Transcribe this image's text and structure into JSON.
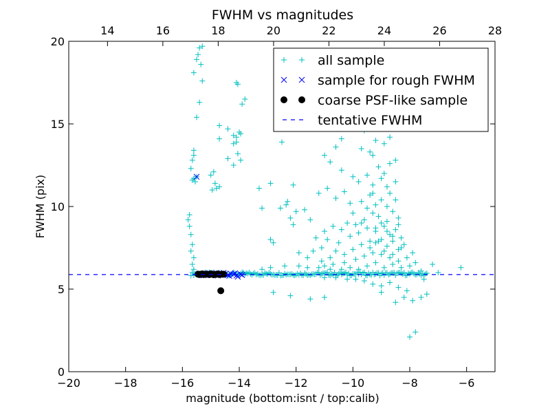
{
  "chart_data": {
    "type": "scatter",
    "title": "FWHM vs magnitudes",
    "xlabel": "magnitude (bottom:isnt / top:calib)",
    "ylabel": "FWHM (pix)",
    "xlim": [
      -20,
      -5
    ],
    "ylim": [
      0,
      20
    ],
    "x_ticks": [
      -20,
      -18,
      -16,
      -14,
      -12,
      -10,
      -8,
      -6
    ],
    "x_tick_labels": [
      "−20",
      "−18",
      "−16",
      "−14",
      "−12",
      "−10",
      "−8",
      "−6"
    ],
    "y_ticks": [
      0,
      5,
      10,
      15,
      20
    ],
    "y_tick_labels": [
      "0",
      "5",
      "10",
      "15",
      "20"
    ],
    "top_axis": {
      "xlim": [
        12.6,
        28.0
      ],
      "ticks": [
        14,
        16,
        18,
        20,
        22,
        24,
        26,
        28
      ],
      "tick_labels": [
        "14",
        "16",
        "18",
        "20",
        "22",
        "24",
        "26",
        "28"
      ]
    },
    "legend": {
      "placement": "top-right",
      "entries": [
        {
          "label": "all sample",
          "marker": "plus",
          "color": "#00bfbf"
        },
        {
          "label": "sample for rough FWHM",
          "marker": "x",
          "color": "#0000ff"
        },
        {
          "label": "coarse PSF-like sample",
          "marker": "circle",
          "color": "#000000"
        },
        {
          "label": "tentative FWHM",
          "marker": "dashed-line",
          "color": "#0000ff"
        }
      ]
    },
    "tentative_fwhm": 5.88,
    "series": [
      {
        "name": "all sample",
        "marker": "plus",
        "color": "#00bfbf",
        "points": [
          [
            -15.4,
            19.6
          ],
          [
            -15.3,
            19.7
          ],
          [
            -15.45,
            19.2
          ],
          [
            -15.5,
            18.9
          ],
          [
            -15.6,
            18.1
          ],
          [
            -15.35,
            18.6
          ],
          [
            -15.3,
            17.6
          ],
          [
            -14.1,
            17.5
          ],
          [
            -14.05,
            17.4
          ],
          [
            -13.8,
            16.5
          ],
          [
            -15.4,
            16.3
          ],
          [
            -13.9,
            16.2
          ],
          [
            -15.5,
            15.4
          ],
          [
            -14.7,
            14.9
          ],
          [
            -14.4,
            14.7
          ],
          [
            -14.7,
            14.1
          ],
          [
            -14.2,
            14.3
          ],
          [
            -14.0,
            14.5
          ],
          [
            -14.1,
            14.2
          ],
          [
            -13.95,
            14.4
          ],
          [
            -14.2,
            13.8
          ],
          [
            -14.1,
            13.9
          ],
          [
            -14.4,
            12.9
          ],
          [
            -14.05,
            13.2
          ],
          [
            -13.95,
            12.8
          ],
          [
            -14.2,
            12.5
          ],
          [
            -15.6,
            13.4
          ],
          [
            -15.6,
            13.1
          ],
          [
            -15.65,
            12.8
          ],
          [
            -15.7,
            12.3
          ],
          [
            -15.6,
            11.7
          ],
          [
            -15.55,
            11.5
          ],
          [
            -15.65,
            11.6
          ],
          [
            -15.5,
            11.8
          ],
          [
            -14.9,
            12.1
          ],
          [
            -15.0,
            11.9
          ],
          [
            -14.85,
            11.4
          ],
          [
            -14.95,
            11.0
          ],
          [
            -14.7,
            11.2
          ],
          [
            -14.8,
            11.1
          ],
          [
            -15.75,
            9.5
          ],
          [
            -15.8,
            9.2
          ],
          [
            -15.75,
            8.8
          ],
          [
            -15.7,
            8.3
          ],
          [
            -15.65,
            7.7
          ],
          [
            -15.7,
            7.3
          ],
          [
            -15.6,
            6.9
          ],
          [
            -15.65,
            6.5
          ],
          [
            -15.6,
            6.2
          ],
          [
            -13.3,
            11.1
          ],
          [
            -12.9,
            11.4
          ],
          [
            -12.1,
            11.3
          ],
          [
            -12.3,
            10.3
          ],
          [
            -12.55,
            9.9
          ],
          [
            -13.2,
            9.9
          ],
          [
            -12.35,
            10.1
          ],
          [
            -12.2,
            9.3
          ],
          [
            -12.1,
            8.9
          ],
          [
            -12.0,
            9.7
          ],
          [
            -11.7,
            9.8
          ],
          [
            -11.5,
            9.2
          ],
          [
            -12.9,
            8.0
          ],
          [
            -12.8,
            7.8
          ],
          [
            -11.9,
            7.2
          ],
          [
            -11.6,
            6.9
          ],
          [
            -11.4,
            7.3
          ],
          [
            -11.1,
            7.5
          ],
          [
            -11.0,
            6.4
          ],
          [
            -12.5,
            13.9
          ],
          [
            -11.0,
            13.1
          ],
          [
            -10.6,
            13.6
          ],
          [
            -10.4,
            14.1
          ],
          [
            -10.2,
            14.8
          ],
          [
            -9.6,
            14.6
          ],
          [
            -9.7,
            13.5
          ],
          [
            -9.4,
            13.3
          ],
          [
            -9.2,
            14.0
          ],
          [
            -8.9,
            13.8
          ],
          [
            -8.7,
            14.2
          ],
          [
            -9.3,
            13.1
          ],
          [
            -8.5,
            12.8
          ],
          [
            -10.8,
            12.7
          ],
          [
            -10.4,
            12.2
          ],
          [
            -10.0,
            11.8
          ],
          [
            -9.8,
            11.5
          ],
          [
            -9.5,
            11.9
          ],
          [
            -9.1,
            12.4
          ],
          [
            -11.2,
            10.8
          ],
          [
            -10.9,
            11.1
          ],
          [
            -10.6,
            10.5
          ],
          [
            -10.3,
            10.9
          ],
          [
            -10.1,
            10.2
          ],
          [
            -10.0,
            9.6
          ],
          [
            -9.7,
            10.3
          ],
          [
            -9.4,
            10.7
          ],
          [
            -9.2,
            10.1
          ],
          [
            -9.0,
            10.4
          ],
          [
            -8.8,
            10.0
          ],
          [
            -8.6,
            9.7
          ],
          [
            -8.4,
            9.3
          ],
          [
            -8.8,
            9.1
          ],
          [
            -9.1,
            9.4
          ],
          [
            -9.3,
            9.6
          ],
          [
            -9.6,
            9.2
          ],
          [
            -9.9,
            8.9
          ],
          [
            -10.2,
            9.0
          ],
          [
            -10.4,
            8.6
          ],
          [
            -10.7,
            8.8
          ],
          [
            -11.0,
            8.5
          ],
          [
            -11.3,
            8.1
          ],
          [
            -10.9,
            8.0
          ],
          [
            -10.5,
            7.8
          ],
          [
            -10.1,
            8.2
          ],
          [
            -9.8,
            8.4
          ],
          [
            -9.5,
            8.7
          ],
          [
            -9.2,
            8.5
          ],
          [
            -8.9,
            8.8
          ],
          [
            -8.7,
            8.3
          ],
          [
            -8.5,
            8.6
          ],
          [
            -8.3,
            8.1
          ],
          [
            -8.2,
            7.7
          ],
          [
            -8.4,
            7.4
          ],
          [
            -8.6,
            7.9
          ],
          [
            -8.8,
            7.6
          ],
          [
            -9.0,
            8.0
          ],
          [
            -9.2,
            7.8
          ],
          [
            -9.4,
            7.5
          ],
          [
            -9.7,
            7.7
          ],
          [
            -10.0,
            7.4
          ],
          [
            -10.3,
            7.1
          ],
          [
            -10.6,
            7.3
          ],
          [
            -10.8,
            6.9
          ],
          [
            -11.1,
            6.7
          ],
          [
            -10.7,
            6.5
          ],
          [
            -10.3,
            6.6
          ],
          [
            -9.9,
            6.8
          ],
          [
            -9.6,
            7.0
          ],
          [
            -9.3,
            7.2
          ],
          [
            -9.0,
            7.1
          ],
          [
            -8.7,
            6.9
          ],
          [
            -8.4,
            6.7
          ],
          [
            -8.1,
            6.9
          ],
          [
            -7.9,
            7.2
          ],
          [
            -7.8,
            6.6
          ],
          [
            -8.0,
            6.4
          ],
          [
            -8.3,
            6.3
          ],
          [
            -8.6,
            6.5
          ],
          [
            -8.9,
            6.3
          ],
          [
            -9.2,
            6.6
          ],
          [
            -9.5,
            6.4
          ],
          [
            -9.8,
            6.2
          ],
          [
            -10.1,
            6.3
          ],
          [
            -10.4,
            6.2
          ],
          [
            -10.8,
            6.2
          ],
          [
            -11.2,
            6.3
          ],
          [
            -11.6,
            6.3
          ],
          [
            -11.9,
            6.4
          ],
          [
            -12.4,
            6.4
          ],
          [
            -12.9,
            6.3
          ],
          [
            -13.2,
            6.2
          ],
          [
            -7.6,
            6.1
          ],
          [
            -7.5,
            5.6
          ],
          [
            -7.4,
            4.7
          ],
          [
            -7.6,
            4.5
          ],
          [
            -7.9,
            4.3
          ],
          [
            -8.1,
            4.9
          ],
          [
            -8.4,
            5.1
          ],
          [
            -8.7,
            5.4
          ],
          [
            -9.0,
            5.2
          ],
          [
            -9.3,
            5.3
          ],
          [
            -9.6,
            5.5
          ],
          [
            -9.9,
            5.6
          ],
          [
            -10.2,
            5.6
          ],
          [
            -10.6,
            5.7
          ],
          [
            -11.0,
            5.7
          ],
          [
            -11.5,
            4.4
          ],
          [
            -11.0,
            4.5
          ],
          [
            -12.2,
            4.6
          ],
          [
            -12.8,
            4.8
          ],
          [
            -9.0,
            4.8
          ],
          [
            -8.5,
            4.2
          ],
          [
            -8.2,
            4.5
          ],
          [
            -7.2,
            6.5
          ],
          [
            -6.2,
            6.3
          ],
          [
            -7.0,
            6.0
          ],
          [
            -8.0,
            2.1
          ],
          [
            -7.8,
            2.4
          ],
          [
            -8.5,
            11.5
          ],
          [
            -8.8,
            11.2
          ],
          [
            -9.0,
            11.7
          ],
          [
            -9.3,
            11.3
          ],
          [
            -8.7,
            10.8
          ],
          [
            -8.5,
            10.4
          ],
          [
            -9.1,
            7.9
          ],
          [
            -8.9,
            7.3
          ],
          [
            -8.6,
            7.1
          ],
          [
            -8.3,
            7.5
          ],
          [
            -9.4,
            7.9
          ],
          [
            -9.0,
            9.0
          ],
          [
            -8.8,
            8.5
          ],
          [
            -8.6,
            8.2
          ],
          [
            -8.4,
            8.9
          ],
          [
            -9.2,
            8.7
          ],
          [
            -9.5,
            9.9
          ],
          [
            -9.7,
            9.0
          ],
          [
            -9.3,
            10.8
          ],
          [
            -8.9,
            12.0
          ],
          [
            -8.7,
            12.6
          ]
        ]
      },
      {
        "name": "all sample (main band)",
        "marker": "plus",
        "color": "#00bfbf",
        "band": {
          "x_start": -15.7,
          "x_end": -7.4,
          "step": 0.05,
          "y_center": 5.92,
          "y_jitter": 0.1
        }
      },
      {
        "name": "sample for rough FWHM",
        "marker": "x",
        "color": "#0000ff",
        "points": [
          [
            -15.5,
            11.8
          ],
          [
            -15.4,
            5.95
          ],
          [
            -15.3,
            5.9
          ],
          [
            -15.2,
            5.88
          ],
          [
            -15.1,
            5.95
          ],
          [
            -15.0,
            5.85
          ],
          [
            -14.9,
            5.9
          ],
          [
            -14.8,
            5.97
          ],
          [
            -14.7,
            5.87
          ],
          [
            -14.6,
            5.92
          ],
          [
            -14.5,
            5.9
          ],
          [
            -14.4,
            5.85
          ],
          [
            -14.3,
            5.94
          ],
          [
            -14.2,
            5.9
          ],
          [
            -14.1,
            5.82
          ],
          [
            -14.05,
            5.75
          ],
          [
            -13.95,
            5.9
          ],
          [
            -13.9,
            5.85
          ],
          [
            -14.15,
            5.96
          ],
          [
            -14.35,
            5.8
          ],
          [
            -14.55,
            5.98
          ],
          [
            -14.75,
            5.82
          ],
          [
            -15.05,
            5.96
          ],
          [
            -15.25,
            5.83
          ]
        ]
      },
      {
        "name": "coarse PSF-like sample",
        "marker": "circle",
        "color": "#000000",
        "points": [
          [
            -15.45,
            5.9
          ],
          [
            -15.4,
            5.88
          ],
          [
            -15.35,
            5.9
          ],
          [
            -15.3,
            5.92
          ],
          [
            -15.25,
            5.88
          ],
          [
            -15.2,
            5.9
          ],
          [
            -15.1,
            5.9
          ],
          [
            -15.05,
            5.88
          ],
          [
            -15.0,
            5.92
          ],
          [
            -14.95,
            5.9
          ],
          [
            -14.9,
            5.87
          ],
          [
            -14.8,
            5.9
          ],
          [
            -14.75,
            5.92
          ],
          [
            -14.7,
            5.88
          ],
          [
            -14.6,
            5.9
          ],
          [
            -14.55,
            5.9
          ],
          [
            -14.65,
            4.9
          ]
        ]
      }
    ]
  }
}
